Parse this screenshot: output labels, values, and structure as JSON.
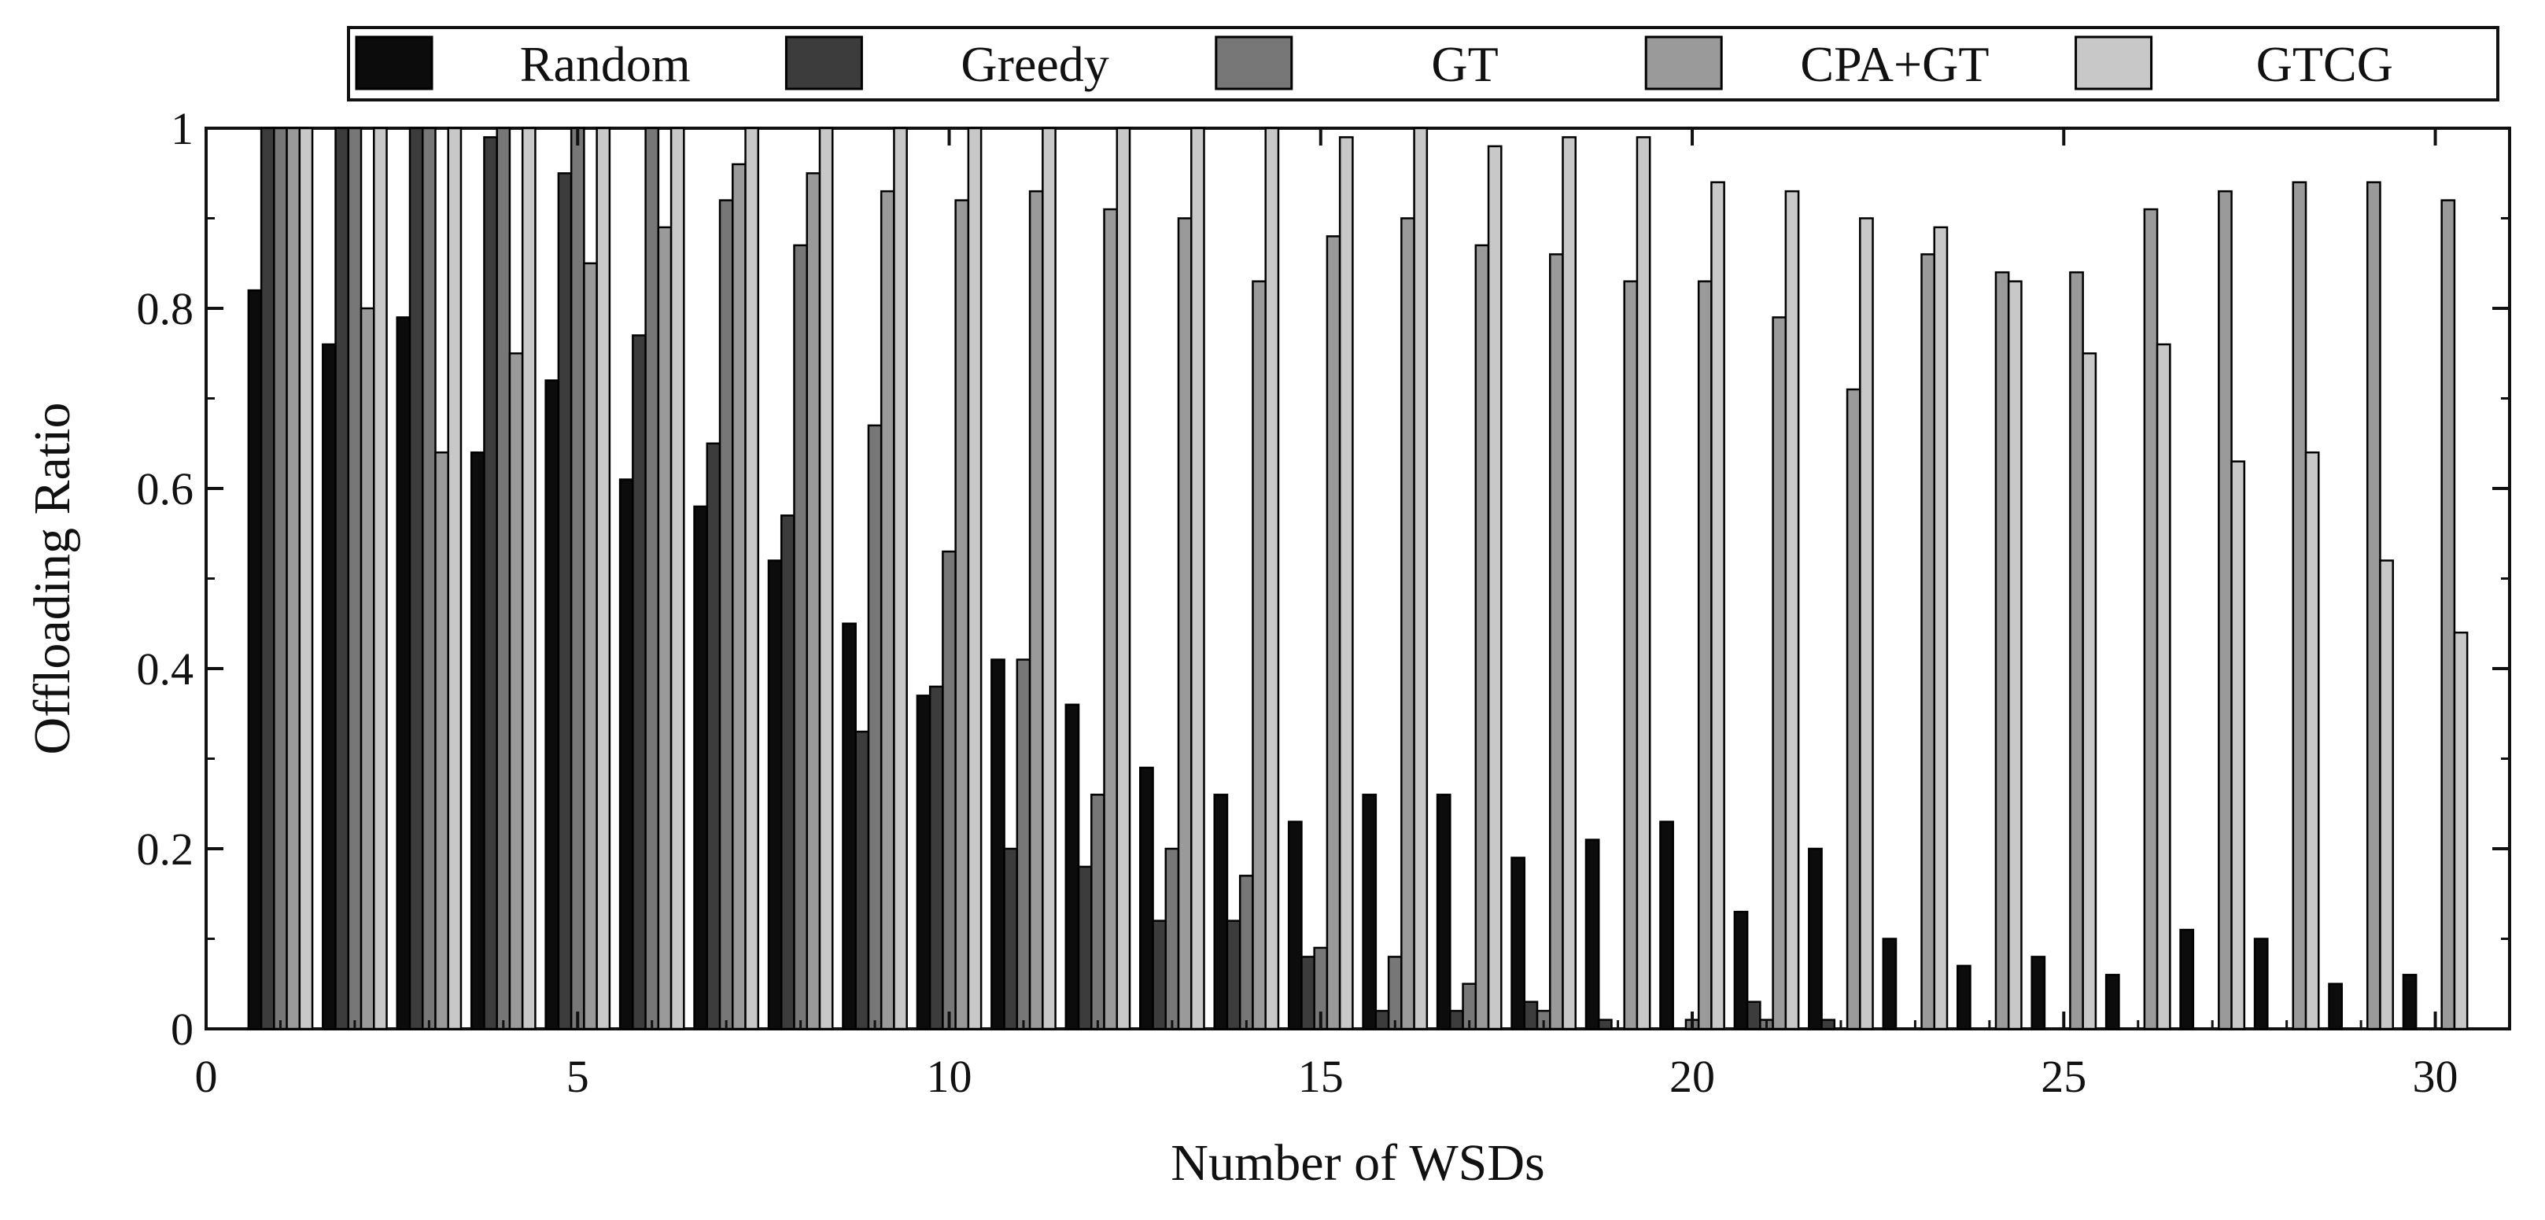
{
  "chart_data": {
    "type": "bar",
    "title": "",
    "xlabel": "Number of WSDs",
    "ylabel": "Offloading Ratio",
    "xlim": [
      0,
      31
    ],
    "ylim": [
      0,
      1
    ],
    "grid": false,
    "legend_position": "top",
    "x_ticks": [
      "0",
      "5",
      "10",
      "15",
      "20",
      "25",
      "30"
    ],
    "y_ticks": [
      "0",
      "0.2",
      "0.4",
      "0.6",
      "0.8",
      "1"
    ],
    "x": [
      1,
      2,
      3,
      4,
      5,
      6,
      7,
      8,
      9,
      10,
      11,
      12,
      13,
      14,
      15,
      16,
      17,
      18,
      19,
      20,
      21,
      22,
      23,
      24,
      25,
      26,
      27,
      28,
      29,
      30
    ],
    "series": [
      {
        "name": "Random",
        "color": "#0c0c0c",
        "values": [
          0.82,
          0.76,
          0.79,
          0.64,
          0.72,
          0.61,
          0.58,
          0.52,
          0.45,
          0.37,
          0.41,
          0.36,
          0.29,
          0.26,
          0.23,
          0.26,
          0.26,
          0.19,
          0.21,
          0.23,
          0.13,
          0.2,
          0.1,
          0.07,
          0.08,
          0.06,
          0.11,
          0.1,
          0.05,
          0.06
        ]
      },
      {
        "name": "Greedy",
        "color": "#3c3c3c",
        "values": [
          1,
          1,
          1,
          0.99,
          0.95,
          0.77,
          0.65,
          0.57,
          0.33,
          0.38,
          0.2,
          0.18,
          0.12,
          0.12,
          0.08,
          0.02,
          0.02,
          0.03,
          0.01,
          0,
          0.03,
          0.01,
          0,
          0,
          0,
          0,
          0,
          0,
          0,
          0
        ]
      },
      {
        "name": "GT",
        "color": "#777777",
        "values": [
          1,
          1,
          1,
          1,
          1,
          1,
          0.92,
          0.87,
          0.67,
          0.53,
          0.41,
          0.26,
          0.2,
          0.17,
          0.09,
          0.08,
          0.05,
          0.02,
          0,
          0.01,
          0.01,
          0,
          0,
          0,
          0,
          0,
          0,
          0,
          0,
          0
        ]
      },
      {
        "name": "CPA+GT",
        "color": "#9a9a9a",
        "values": [
          1,
          0.8,
          0.64,
          0.75,
          0.85,
          0.89,
          0.96,
          0.95,
          0.93,
          0.92,
          0.93,
          0.91,
          0.9,
          0.83,
          0.88,
          0.9,
          0.87,
          0.86,
          0.83,
          0.83,
          0.79,
          0.71,
          0.86,
          0.84,
          0.84,
          0.91,
          0.93,
          0.94,
          0.94,
          0.92
        ]
      },
      {
        "name": "GTCG",
        "color": "#c8c8c8",
        "values": [
          1,
          1,
          1,
          1,
          1,
          1,
          1,
          1,
          1,
          1,
          1,
          1,
          1,
          1,
          0.99,
          1,
          0.98,
          0.99,
          0.99,
          0.94,
          0.93,
          0.9,
          0.89,
          0.83,
          0.75,
          0.76,
          0.63,
          0.64,
          0.52,
          0.44
        ]
      }
    ]
  }
}
